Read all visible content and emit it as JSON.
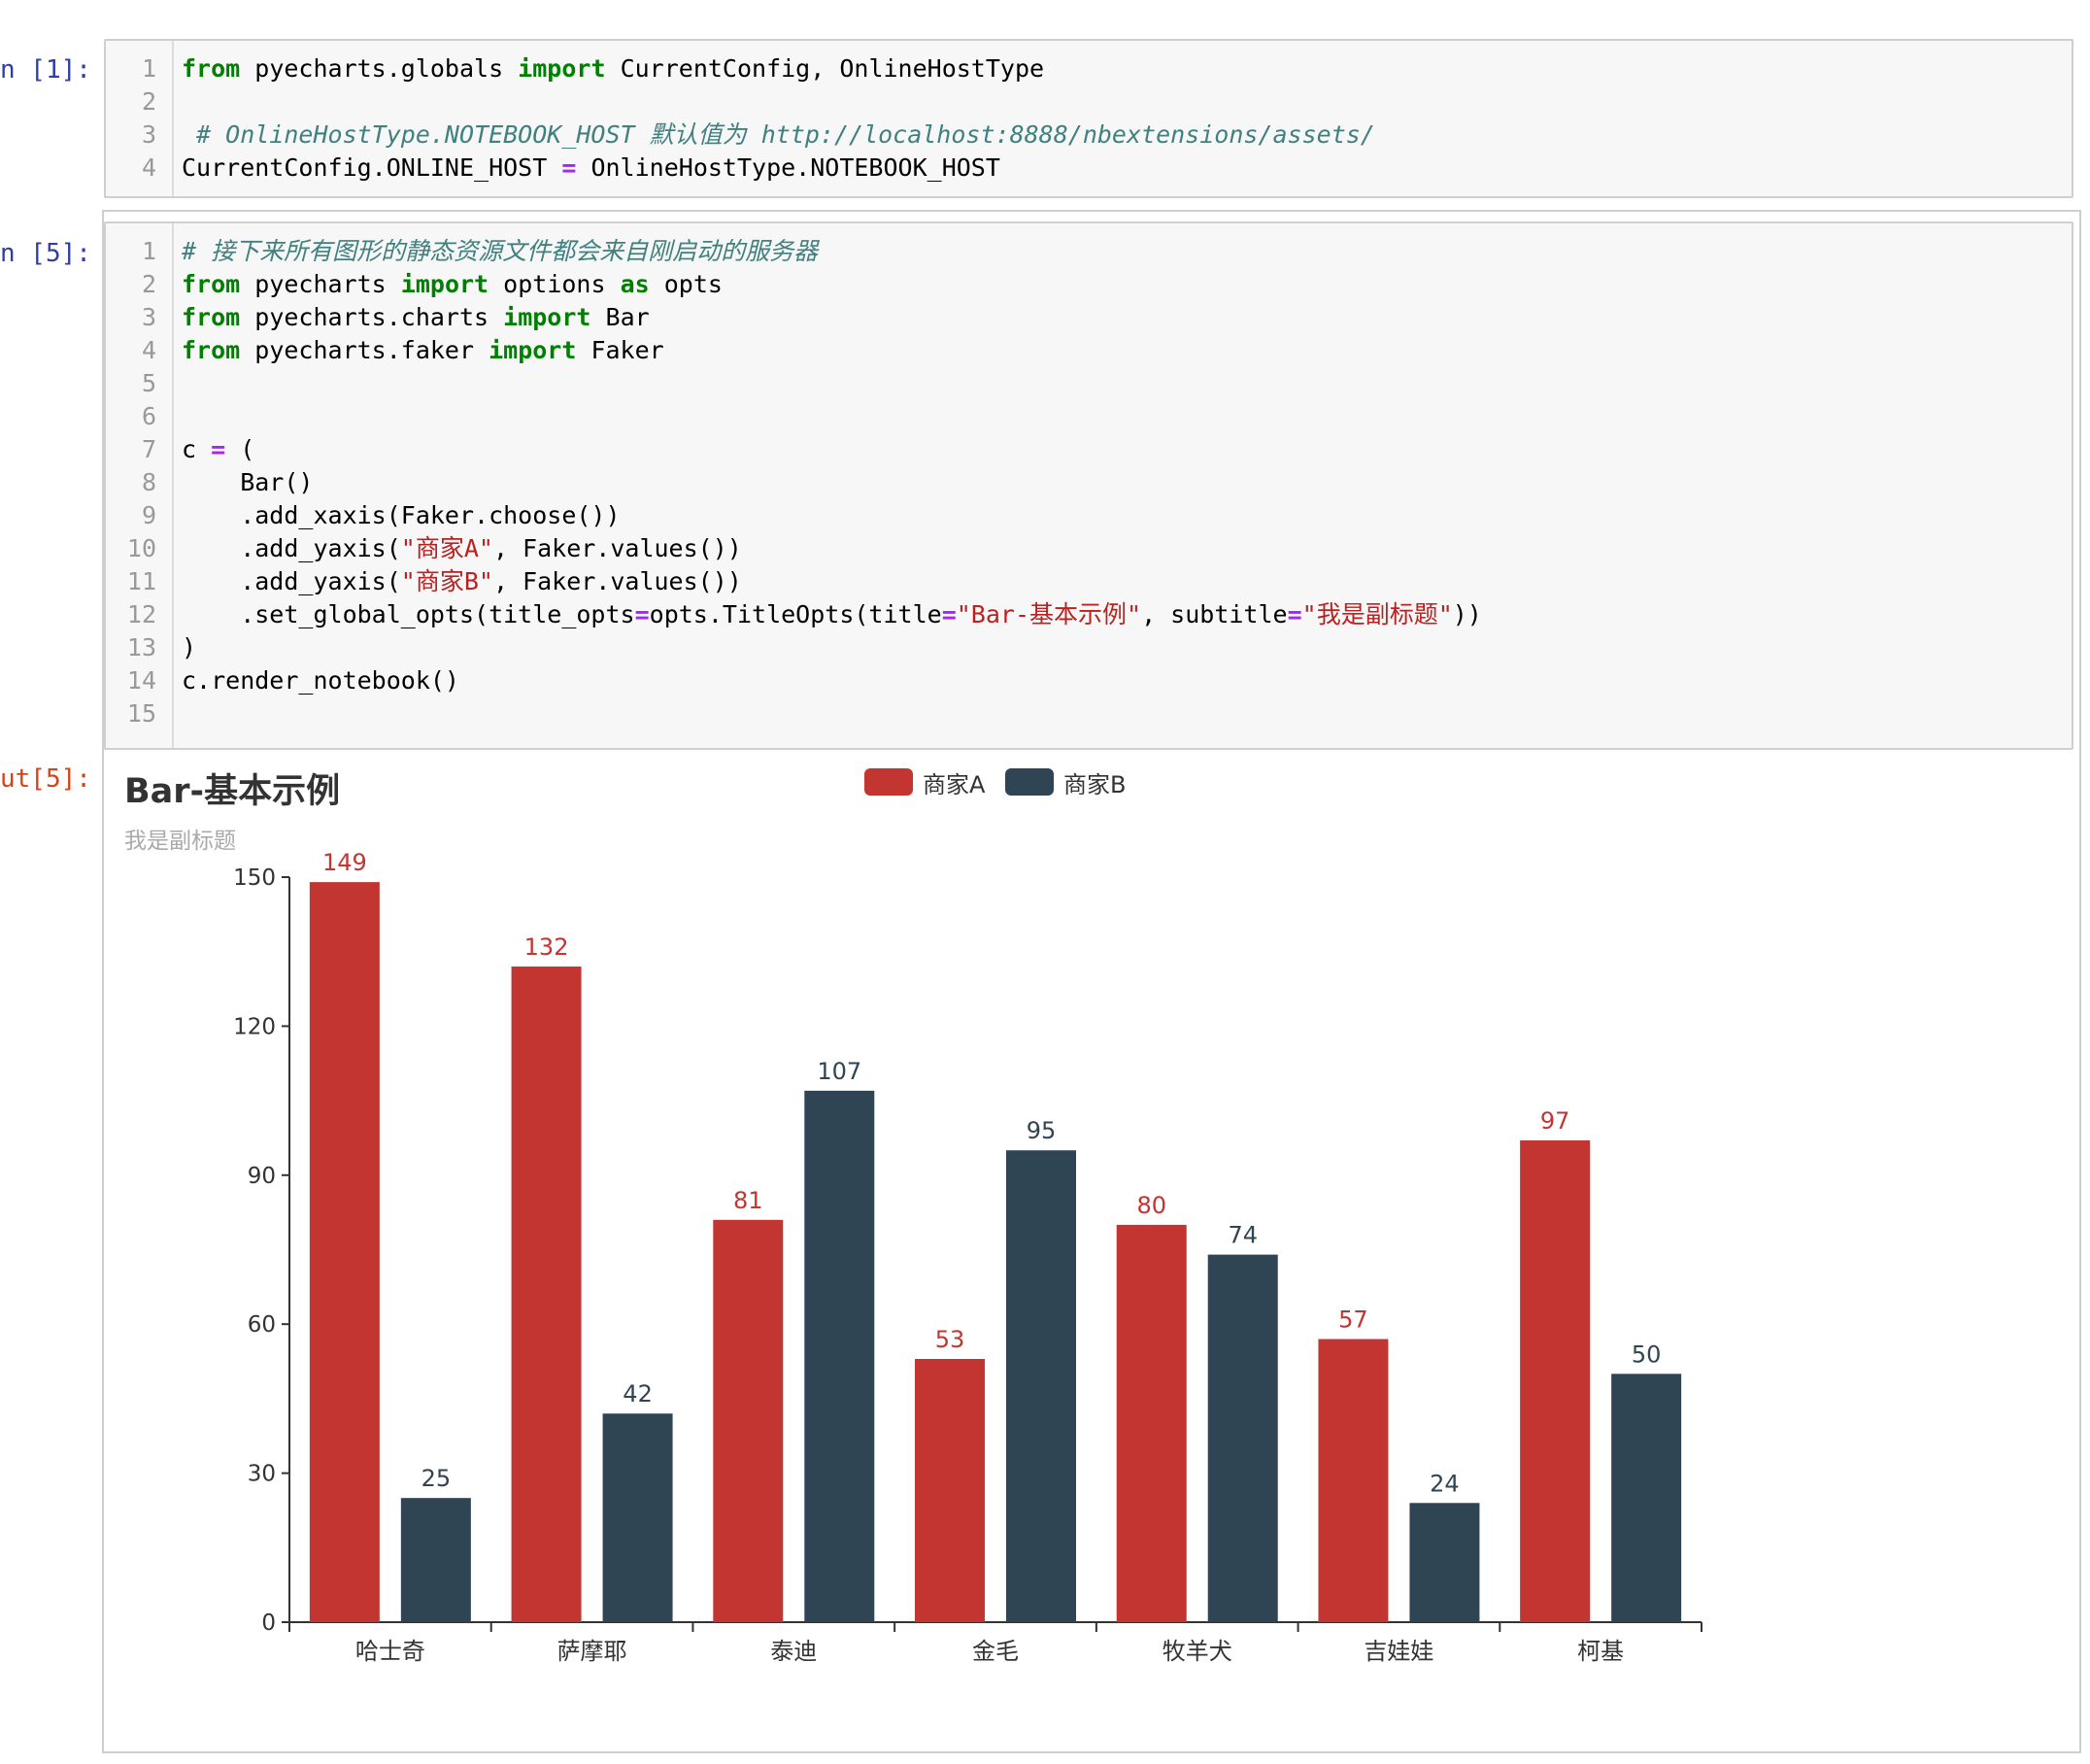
{
  "cells": [
    {
      "prompt": "n [1]:",
      "lines": [
        {
          "n": "1",
          "tokens": [
            [
              "kw",
              "from"
            ],
            [
              "t",
              " pyecharts.globals "
            ],
            [
              "kw",
              "import"
            ],
            [
              "t",
              " CurrentConfig, OnlineHostType"
            ]
          ]
        },
        {
          "n": "2",
          "tokens": []
        },
        {
          "n": "3",
          "tokens": [
            [
              "cmt",
              " # OnlineHostType.NOTEBOOK_HOST 默认值为 http://localhost:8888/nbextensions/assets/"
            ]
          ]
        },
        {
          "n": "4",
          "tokens": [
            [
              "t",
              "CurrentConfig.ONLINE_HOST "
            ],
            [
              "op",
              "="
            ],
            [
              "t",
              " OnlineHostType.NOTEBOOK_HOST"
            ]
          ]
        }
      ]
    },
    {
      "prompt": "n [5]:",
      "lines": [
        {
          "n": "1",
          "tokens": [
            [
              "cmt",
              "# 接下来所有图形的静态资源文件都会来自刚启动的服务器"
            ]
          ]
        },
        {
          "n": "2",
          "tokens": [
            [
              "kw",
              "from"
            ],
            [
              "t",
              " pyecharts "
            ],
            [
              "kw",
              "import"
            ],
            [
              "t",
              " options "
            ],
            [
              "kw",
              "as"
            ],
            [
              "t",
              " opts"
            ]
          ]
        },
        {
          "n": "3",
          "tokens": [
            [
              "kw",
              "from"
            ],
            [
              "t",
              " pyecharts.charts "
            ],
            [
              "kw",
              "import"
            ],
            [
              "t",
              " Bar"
            ]
          ]
        },
        {
          "n": "4",
          "tokens": [
            [
              "kw",
              "from"
            ],
            [
              "t",
              " pyecharts.faker "
            ],
            [
              "kw",
              "import"
            ],
            [
              "t",
              " Faker"
            ]
          ]
        },
        {
          "n": "5",
          "tokens": []
        },
        {
          "n": "6",
          "tokens": []
        },
        {
          "n": "7",
          "tokens": [
            [
              "t",
              "c "
            ],
            [
              "op",
              "="
            ],
            [
              "t",
              " ("
            ]
          ]
        },
        {
          "n": "8",
          "tokens": [
            [
              "t",
              "    Bar()"
            ]
          ]
        },
        {
          "n": "9",
          "tokens": [
            [
              "t",
              "    .add_xaxis(Faker.choose())"
            ]
          ]
        },
        {
          "n": "10",
          "tokens": [
            [
              "t",
              "    .add_yaxis("
            ],
            [
              "str",
              "\"商家A\""
            ],
            [
              "t",
              ", Faker.values())"
            ]
          ]
        },
        {
          "n": "11",
          "tokens": [
            [
              "t",
              "    .add_yaxis("
            ],
            [
              "str",
              "\"商家B\""
            ],
            [
              "t",
              ", Faker.values())"
            ]
          ]
        },
        {
          "n": "12",
          "tokens": [
            [
              "t",
              "    .set_global_opts(title_opts"
            ],
            [
              "op",
              "="
            ],
            [
              "t",
              "opts.TitleOpts(title"
            ],
            [
              "op",
              "="
            ],
            [
              "str",
              "\"Bar-基本示例\""
            ],
            [
              "t",
              ", subtitle"
            ],
            [
              "op",
              "="
            ],
            [
              "str",
              "\"我是副标题\""
            ],
            [
              "t",
              "))"
            ]
          ]
        },
        {
          "n": "13",
          "tokens": [
            [
              "t",
              ")"
            ]
          ]
        },
        {
          "n": "14",
          "tokens": [
            [
              "t",
              "c.render_notebook()"
            ]
          ]
        },
        {
          "n": "15",
          "tokens": []
        }
      ]
    }
  ],
  "output_prompt": "ut[5]:",
  "chart_data": {
    "type": "bar",
    "title": "Bar-基本示例",
    "subtitle": "我是副标题",
    "categories": [
      "哈士奇",
      "萨摩耶",
      "泰迪",
      "金毛",
      "牧羊犬",
      "吉娃娃",
      "柯基"
    ],
    "series": [
      {
        "name": "商家A",
        "color": "#c23531",
        "values": [
          149,
          132,
          81,
          53,
          80,
          57,
          97
        ]
      },
      {
        "name": "商家B",
        "color": "#2f4554",
        "values": [
          25,
          42,
          107,
          95,
          74,
          24,
          50
        ]
      }
    ],
    "ylim": [
      0,
      150
    ],
    "yticks": [
      0,
      30,
      60,
      90,
      120,
      150
    ],
    "legend_position": "top-center",
    "grid": false,
    "data_labels": "top"
  }
}
